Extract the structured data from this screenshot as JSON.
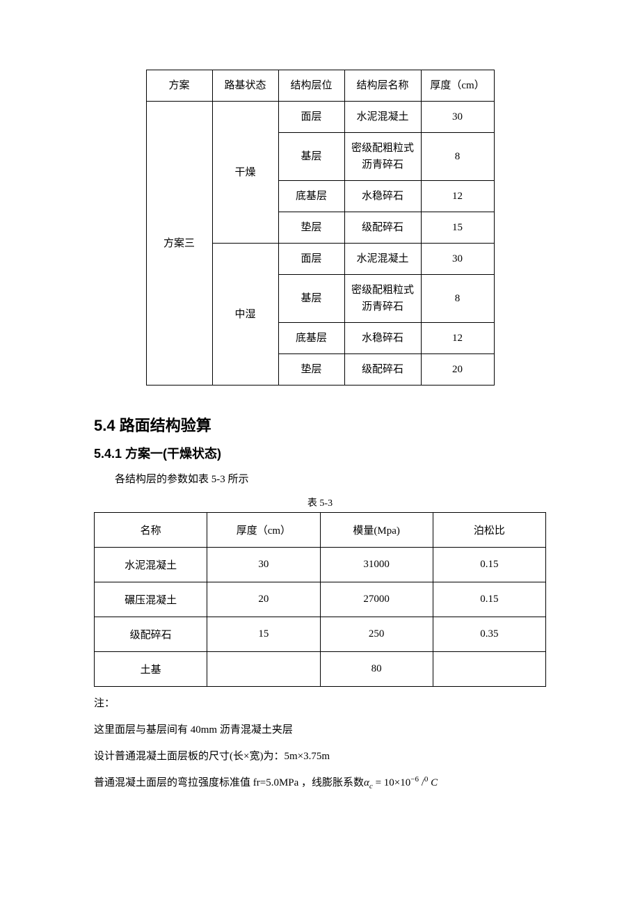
{
  "table1": {
    "headers": {
      "col1": "方案",
      "col2": "路基状态",
      "col3": "结构层位",
      "col4": "结构层名称",
      "col5": "厚度（cm）"
    },
    "plan_label": "方案三",
    "state1": "干燥",
    "state2": "中湿",
    "rows": [
      {
        "layer": "面层",
        "name": "水泥混凝土",
        "thick": "30"
      },
      {
        "layer": "基层",
        "name": "密级配粗粒式沥青碎石",
        "thick": "8"
      },
      {
        "layer": "底基层",
        "name": "水稳碎石",
        "thick": "12"
      },
      {
        "layer": "垫层",
        "name": "级配碎石",
        "thick": "15"
      },
      {
        "layer": "面层",
        "name": "水泥混凝土",
        "thick": "30"
      },
      {
        "layer": "基层",
        "name": "密级配粗粒式沥青碎石",
        "thick": "8"
      },
      {
        "layer": "底基层",
        "name": "水稳碎石",
        "thick": "12"
      },
      {
        "layer": "垫层",
        "name": "级配碎石",
        "thick": "20"
      }
    ]
  },
  "headings": {
    "h2": "5.4  路面结构验算",
    "h3": "5.4.1  方案一(干燥状态)"
  },
  "intro_text": "各结构层的参数如表 5-3 所示",
  "table2_caption": "表 5-3",
  "table2": {
    "headers": {
      "c1": "名称",
      "c2": "厚度（cm）",
      "c3": "模量(Mpa)",
      "c4": "泊松比"
    },
    "rows": [
      {
        "name": "水泥混凝土",
        "thick": "30",
        "mod": "31000",
        "ratio": "0.15"
      },
      {
        "name": "碾压混凝土",
        "thick": "20",
        "mod": "27000",
        "ratio": "0.15"
      },
      {
        "name": "级配碎石",
        "thick": "15",
        "mod": "250",
        "ratio": "0.35"
      },
      {
        "name": "土基",
        "thick": "",
        "mod": "80",
        "ratio": ""
      }
    ]
  },
  "notes": {
    "n1": "注：",
    "n2": "这里面层与基层间有 40mm 沥青混凝土夹层",
    "n3": "设计普通混凝土面层板的尺寸(长×宽)为：5m×3.75m",
    "n4_prefix": "普通混凝土面层的弯拉强度标准值 fr=5.0MPa ，线膨胀系数",
    "n4_symbol": "α",
    "n4_sub": "c",
    "n4_eq": " = 10×10",
    "n4_sup1": "−6",
    "n4_mid": " /",
    "n4_sup2": "0",
    "n4_end": " C"
  },
  "style": {
    "background": "#ffffff",
    "text_color": "#000000",
    "border_color": "#000000",
    "body_fontsize": 15,
    "h2_fontsize": 22,
    "h3_fontsize": 18,
    "caption_fontsize": 14
  }
}
